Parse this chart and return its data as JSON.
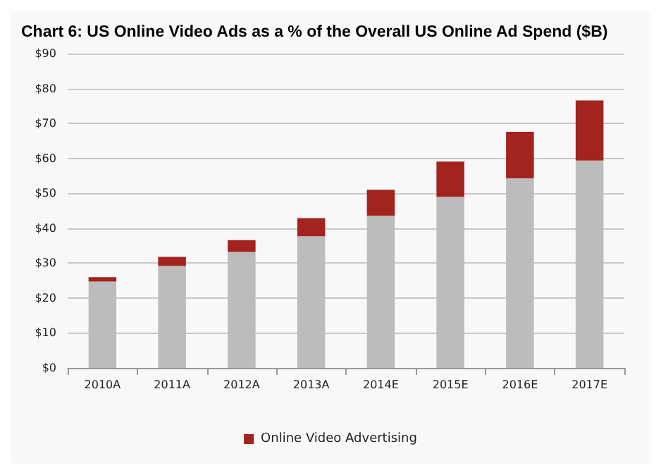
{
  "chart_data": {
    "type": "bar",
    "title": "Chart 6: US Online Video Ads as a % of the Overall US Online Ad Spend ($B)",
    "categories": [
      "2010A",
      "2011A",
      "2012A",
      "2013A",
      "2014E",
      "2015E",
      "2016E",
      "2017E"
    ],
    "stacked": true,
    "series": [
      {
        "color": "#bcbcbc",
        "values": [
          24.7,
          29.2,
          33.2,
          37.7,
          43.6,
          49.0,
          54.3,
          59.4
        ]
      },
      {
        "name": "Online Video Advertising",
        "color": "#a3231e",
        "values": [
          1.3,
          2.6,
          3.4,
          5.2,
          7.4,
          10.1,
          13.3,
          17.2
        ]
      }
    ],
    "ylim": [
      0,
      90
    ],
    "yticks": [
      {
        "value": 0,
        "label": "$0"
      },
      {
        "value": 10,
        "label": "$10"
      },
      {
        "value": 20,
        "label": "$20"
      },
      {
        "value": 30,
        "label": "$30"
      },
      {
        "value": 40,
        "label": "$40"
      },
      {
        "value": 50,
        "label": "$50"
      },
      {
        "value": 60,
        "label": "$60"
      },
      {
        "value": 70,
        "label": "$70"
      },
      {
        "value": 80,
        "label": "$80"
      },
      {
        "value": 90,
        "label": "$90"
      }
    ],
    "grid": "y",
    "legend": "bottom"
  }
}
